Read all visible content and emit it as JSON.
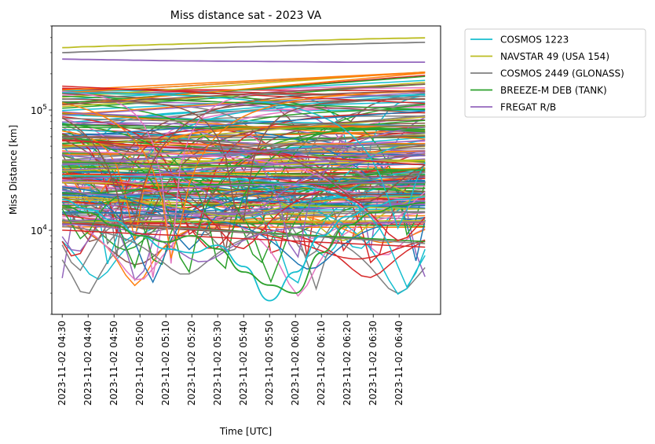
{
  "chart_data": {
    "type": "line",
    "title": "Miss distance sat - 2023 VA",
    "xlabel": "Time [UTC]",
    "ylabel": "Miss Distance [km]",
    "yscale": "log",
    "ylim": [
      2000,
      500000
    ],
    "xlim": [
      "2023-11-02 04:26",
      "2023-11-02 06:56"
    ],
    "x_range_data": [
      "2023-11-02 04:30",
      "2023-11-02 06:50"
    ],
    "x_tick_labels": [
      "2023-11-02 04:30",
      "2023-11-02 04:40",
      "2023-11-02 04:50",
      "2023-11-02 05:00",
      "2023-11-02 05:10",
      "2023-11-02 05:20",
      "2023-11-02 05:30",
      "2023-11-02 05:40",
      "2023-11-02 05:50",
      "2023-11-02 06:00",
      "2023-11-02 06:10",
      "2023-11-02 06:20",
      "2023-11-02 06:30",
      "2023-11-02 06:40"
    ],
    "y_tick_labels": [
      {
        "value": 10000,
        "base": "10",
        "exp": "4"
      },
      {
        "value": 100000,
        "base": "10",
        "exp": "5"
      }
    ],
    "legend_position": "outside upper right",
    "grid": false,
    "colors": [
      "#17becf",
      "#bcbd22",
      "#7f7f7f",
      "#2ca02c",
      "#9467bd",
      "#1f77b4",
      "#ff7f0e",
      "#d62728",
      "#8c564b",
      "#e377c2"
    ],
    "series": [
      {
        "name": "COSMOS 1223",
        "color": "#17becf",
        "x": [
          "04:30",
          "04:40",
          "04:50",
          "05:00",
          "05:10",
          "05:20",
          "05:30",
          "05:40",
          "05:50",
          "06:00",
          "06:10",
          "06:20",
          "06:30",
          "06:40",
          "06:50"
        ],
        "values": [
          18000,
          15000,
          12000,
          9000,
          7000,
          6500,
          7500,
          5000,
          2600,
          4500,
          9000,
          13000,
          16000,
          18000,
          19000
        ]
      },
      {
        "name": "NAVSTAR 49 (USA 154)",
        "color": "#bcbd22",
        "x": [
          "04:30",
          "04:40",
          "04:50",
          "05:00",
          "05:10",
          "05:20",
          "05:30",
          "05:40",
          "05:50",
          "06:00",
          "06:10",
          "06:20",
          "06:30",
          "06:40",
          "06:50"
        ],
        "values": [
          330000,
          336000,
          341000,
          346000,
          351000,
          356000,
          361000,
          366000,
          371000,
          376000,
          381000,
          386000,
          391000,
          395000,
          398000
        ]
      },
      {
        "name": "COSMOS 2449 (GLONASS)",
        "color": "#7f7f7f",
        "x": [
          "04:30",
          "04:40",
          "04:50",
          "05:00",
          "05:10",
          "05:20",
          "05:30",
          "05:40",
          "05:50",
          "06:00",
          "06:10",
          "06:20",
          "06:30",
          "06:40",
          "06:50"
        ],
        "values": [
          300000,
          305000,
          310000,
          315000,
          320000,
          325000,
          330000,
          335000,
          340000,
          345000,
          350000,
          354000,
          358000,
          362000,
          365000
        ]
      },
      {
        "name": "BREEZE-M DEB (TANK)",
        "color": "#2ca02c",
        "x": [
          "04:30",
          "04:40",
          "04:50",
          "05:00",
          "05:10",
          "05:20",
          "05:30",
          "05:40",
          "05:50",
          "06:00",
          "06:10",
          "06:20",
          "06:30",
          "06:40",
          "06:50"
        ],
        "values": [
          16000,
          14000,
          11000,
          9000,
          8000,
          9000,
          7000,
          4500,
          3500,
          3000,
          6500,
          11000,
          14000,
          16000,
          17000
        ]
      },
      {
        "name": "FREGAT R/B",
        "color": "#9467bd",
        "x": [
          "04:30",
          "04:40",
          "04:50",
          "05:00",
          "05:10",
          "05:20",
          "05:30",
          "05:40",
          "05:50",
          "06:00",
          "06:10",
          "06:20",
          "06:30",
          "06:40",
          "06:50"
        ],
        "values": [
          265000,
          263000,
          261000,
          259000,
          257000,
          256000,
          255000,
          254000,
          253000,
          252000,
          251000,
          250000,
          250000,
          250000,
          250000
        ]
      }
    ]
  }
}
